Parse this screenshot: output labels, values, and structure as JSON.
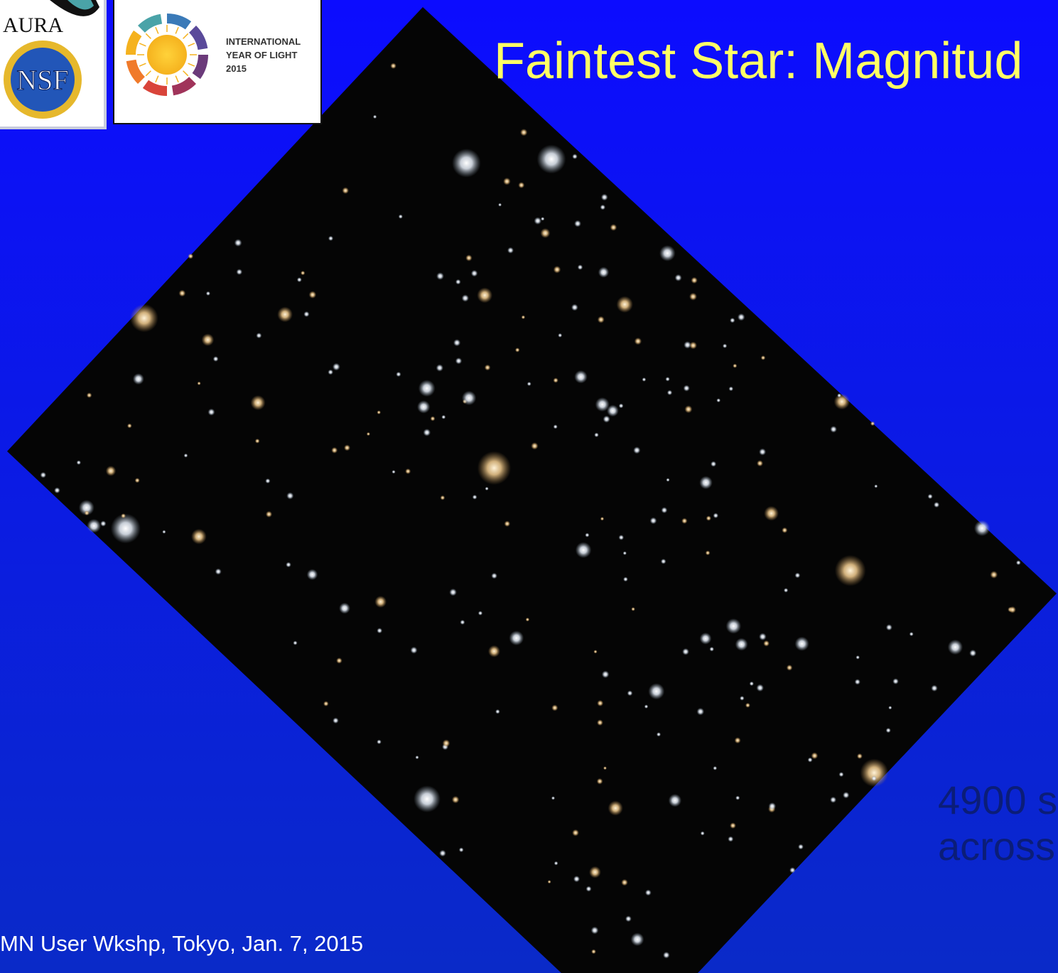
{
  "logos": {
    "aura": "AURA",
    "nsf": "NSF",
    "iyl": [
      "INTERNATIONAL",
      "YEAR OF LIGHT",
      "2015"
    ]
  },
  "title": "Faintest Star: Magnitud",
  "side_text": [
    "4900 s",
    "across"
  ],
  "footer": "MN User Wkshp, Tokyo, Jan. 7, 2015"
}
